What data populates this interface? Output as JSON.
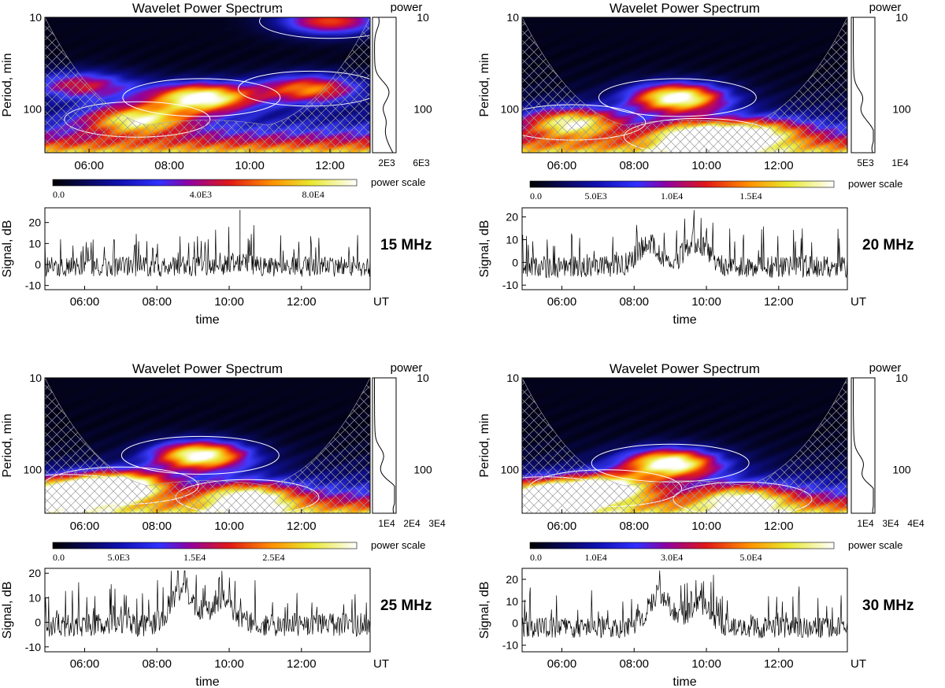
{
  "common": {
    "wps_title": "Wavelet Power Spectrum",
    "power_title": "power",
    "period_ylabel": "Period, min",
    "signal_ylabel": "Signal, dB",
    "time_xlabel": "time",
    "ut_label": "UT",
    "power_scale_label": "power scale",
    "time_ticks": [
      "06:00",
      "08:00",
      "10:00",
      "12:00"
    ],
    "period_ticks": [
      "10",
      "100"
    ],
    "colors": {
      "contour": "#ffffff",
      "signal": "#000000",
      "axis": "#000000"
    }
  },
  "chart_data": [
    {
      "type": "heatmap",
      "frequency_label": "15 MHz",
      "time_range_h": [
        4.9,
        13.0
      ],
      "period_range_min": [
        10,
        300
      ],
      "hotspots": [
        {
          "t": 8.8,
          "period_min": 75,
          "power": 1.0
        },
        {
          "t": 7.2,
          "period_min": 130,
          "power": 0.75
        },
        {
          "t": 11.5,
          "period_min": 60,
          "power": 0.7
        },
        {
          "t": 5.8,
          "period_min": 55,
          "power": 0.55
        },
        {
          "t": 12.0,
          "period_min": 11,
          "power": 0.65
        }
      ],
      "power_axis_ticks": [
        "2E3",
        "6E3"
      ],
      "color_scale_ticks": [
        "0.0",
        "4.0E3",
        "8.0E4"
      ],
      "signal": {
        "yticks": [
          "-10",
          "0",
          "10",
          "20"
        ],
        "ylim": [
          -12,
          27
        ],
        "baseline_db": -1,
        "noise_db": 3,
        "spikes": 15,
        "bumps": [
          {
            "t": 10.3,
            "db": 2
          }
        ],
        "big_spike": {
          "t": 10.3,
          "db": 26
        },
        "seed": 11
      }
    },
    {
      "type": "heatmap",
      "frequency_label": "20 MHz",
      "time_range_h": [
        4.9,
        13.9
      ],
      "period_range_min": [
        10,
        300
      ],
      "hotspots": [
        {
          "t": 9.2,
          "period_min": 75,
          "power": 1.0
        },
        {
          "t": 6.3,
          "period_min": 140,
          "power": 0.75
        },
        {
          "t": 11.5,
          "period_min": 180,
          "power": 0.55
        },
        {
          "t": 9.8,
          "period_min": 200,
          "power": 0.85
        }
      ],
      "power_axis_ticks": [
        "5E3",
        "1E4"
      ],
      "color_scale_ticks": [
        "0.0",
        "5.0E3",
        "1.0E4",
        "1.5E4"
      ],
      "signal": {
        "yticks": [
          "-10",
          "0",
          "10",
          "20"
        ],
        "ylim": [
          -12,
          24
        ],
        "baseline_db": -2,
        "noise_db": 3,
        "spikes": 14,
        "bumps": [
          {
            "t": 8.4,
            "db": 10
          },
          {
            "t": 9.7,
            "db": 11
          }
        ],
        "seed": 22
      }
    },
    {
      "type": "heatmap",
      "frequency_label": "25 MHz",
      "time_range_h": [
        4.9,
        13.9
      ],
      "period_range_min": [
        10,
        300
      ],
      "hotspots": [
        {
          "t": 9.2,
          "period_min": 70,
          "power": 1.0
        },
        {
          "t": 7.0,
          "period_min": 150,
          "power": 0.95
        },
        {
          "t": 5.5,
          "period_min": 180,
          "power": 0.9
        },
        {
          "t": 10.5,
          "period_min": 200,
          "power": 0.7
        }
      ],
      "power_axis_ticks": [
        "1E4",
        "2E4",
        "3E4"
      ],
      "color_scale_ticks": [
        "0.0",
        "5.0E3",
        "1.5E4",
        "2.5E4"
      ],
      "signal": {
        "yticks": [
          "-10",
          "0",
          "10",
          "20"
        ],
        "ylim": [
          -12,
          22
        ],
        "baseline_db": -1,
        "noise_db": 3,
        "spikes": 16,
        "bumps": [
          {
            "t": 8.7,
            "db": 14
          },
          {
            "t": 9.8,
            "db": 10
          }
        ],
        "seed": 33
      }
    },
    {
      "type": "heatmap",
      "frequency_label": "30 MHz",
      "time_range_h": [
        4.9,
        13.9
      ],
      "period_range_min": [
        10,
        300
      ],
      "hotspots": [
        {
          "t": 9.0,
          "period_min": 85,
          "power": 1.0
        },
        {
          "t": 7.2,
          "period_min": 160,
          "power": 0.9
        },
        {
          "t": 5.5,
          "period_min": 190,
          "power": 0.85
        },
        {
          "t": 11.0,
          "period_min": 210,
          "power": 0.6
        }
      ],
      "power_axis_ticks": [
        "1E4",
        "3E4",
        "4E4"
      ],
      "color_scale_ticks": [
        "0.0",
        "1.0E4",
        "3.0E4",
        "5.0E4"
      ],
      "signal": {
        "yticks": [
          "-10",
          "0",
          "10",
          "20"
        ],
        "ylim": [
          -13,
          25
        ],
        "baseline_db": -2,
        "noise_db": 3,
        "spikes": 14,
        "bumps": [
          {
            "t": 8.7,
            "db": 15
          },
          {
            "t": 9.8,
            "db": 10
          }
        ],
        "seed": 44
      }
    }
  ]
}
